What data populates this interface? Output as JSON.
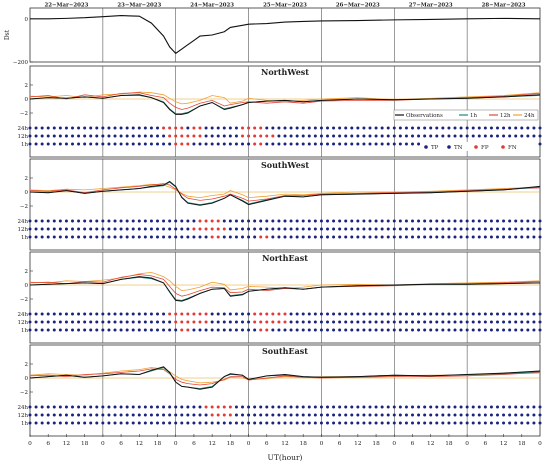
{
  "figure": {
    "dates": [
      "22−Mar−2023",
      "23−Mar−2023",
      "24−Mar−2023",
      "25−Mar−2023",
      "26−Mar−2023",
      "27−Mar−2023",
      "28−Mar−2023"
    ],
    "hour_ticks": [
      "0",
      "6",
      "12",
      "18"
    ],
    "last_tick": "0",
    "xlabel": "UT(hour)",
    "top_ylabel": "Dst",
    "top_yticks": [
      "0",
      "−200"
    ],
    "mid_yticks": [
      "−2",
      "0",
      "2"
    ],
    "class_rows": [
      "24h",
      "12h",
      "1h"
    ],
    "legend_series": [
      "Observations",
      "1h",
      "12h",
      "24h"
    ],
    "legend_classes": [
      "TP",
      "TN",
      "FP",
      "FN"
    ],
    "colors": {
      "obs": "#111111",
      "h1": "#1b8a7a",
      "h12": "#e0473a",
      "h24": "#f0a033",
      "tn": "#1a237e",
      "fp": "#e53935",
      "fn": "#e53935",
      "tp": "#1a237e"
    },
    "panels": [
      {
        "title": "NorthWest"
      },
      {
        "title": "SouthWest"
      },
      {
        "title": "NorthEast"
      },
      {
        "title": "SouthEast"
      }
    ]
  },
  "chart_data": {
    "type": "line",
    "x_unit": "UT hours since 22-Mar-2023 00:00",
    "xlim": [
      0,
      168
    ],
    "dst": {
      "ylim": [
        -200,
        50
      ],
      "x": [
        0,
        6,
        12,
        18,
        24,
        30,
        36,
        40,
        44,
        46,
        48,
        50,
        52,
        54,
        56,
        60,
        64,
        66,
        70,
        72,
        78,
        84,
        90,
        96,
        108,
        120,
        132,
        144,
        156,
        168
      ],
      "y": [
        0,
        0,
        2,
        5,
        10,
        15,
        12,
        -20,
        -80,
        -130,
        -160,
        -140,
        -120,
        -100,
        -80,
        -75,
        -60,
        -40,
        -30,
        -25,
        -22,
        -15,
        -12,
        -10,
        -8,
        -5,
        -3,
        0,
        2,
        0
      ]
    },
    "panels": [
      {
        "name": "NorthWest",
        "ylim": [
          -3,
          3
        ],
        "x": [
          0,
          6,
          12,
          18,
          24,
          30,
          36,
          40,
          44,
          46,
          48,
          50,
          52,
          56,
          60,
          64,
          66,
          70,
          72,
          78,
          84,
          90,
          96,
          108,
          120,
          132,
          144,
          156,
          168
        ],
        "series": [
          {
            "name": "Observations",
            "values": [
              0,
              0.2,
              0.1,
              0.3,
              0.1,
              0.5,
              0.6,
              0.2,
              -0.5,
              -1.5,
              -2.2,
              -2.2,
              -2.0,
              -1.0,
              -0.5,
              -1.5,
              -1.3,
              -0.8,
              -0.5,
              -0.3,
              -0.2,
              -0.4,
              -0.2,
              0,
              -0.1,
              0,
              0.1,
              0.3,
              0.6
            ]
          },
          {
            "name": "1h",
            "values": [
              0,
              0.2,
              0.1,
              0.3,
              0.1,
              0.5,
              0.5,
              0.2,
              -0.4,
              -1.4,
              -2.1,
              -2.1,
              -1.9,
              -1.0,
              -0.5,
              -1.4,
              -1.2,
              -0.8,
              -0.5,
              -0.3,
              -0.2,
              -0.4,
              -0.2,
              0,
              -0.1,
              0,
              0.1,
              0.3,
              0.5
            ]
          },
          {
            "name": "12h",
            "values": [
              0.3,
              0.5,
              0,
              0.6,
              0.3,
              0.8,
              0.9,
              0.5,
              0.2,
              -0.6,
              -1.2,
              -1.5,
              -1.3,
              -0.6,
              -0.2,
              -1.0,
              -0.8,
              -0.5,
              -0.4,
              -0.6,
              -0.4,
              -0.6,
              -0.3,
              -0.2,
              -0.2,
              0,
              0.2,
              0.4,
              0.8
            ]
          },
          {
            "name": "24h",
            "values": [
              0.4,
              0.3,
              0.5,
              0.2,
              0.6,
              0.7,
              1.0,
              0.9,
              0.6,
              0.1,
              -0.4,
              -0.7,
              -0.6,
              -0.2,
              0.5,
              0.2,
              -0.6,
              -0.3,
              0.1,
              -0.2,
              -0.4,
              -0.2,
              0,
              0.2,
              -0.1,
              0.1,
              0.3,
              0.5,
              0.9
            ]
          }
        ],
        "fp_fn_ranges": {
          "24h": [
            [
              44,
              51
            ],
            [
              53,
              56
            ],
            [
              70,
              76
            ]
          ],
          "12h": [
            [
              46,
              56
            ],
            [
              70,
              80
            ]
          ],
          "1h": [
            [
              48,
              52
            ],
            [
              74,
              76
            ]
          ]
        }
      },
      {
        "name": "SouthWest",
        "ylim": [
          -3,
          3
        ],
        "x": [
          0,
          6,
          12,
          18,
          24,
          30,
          36,
          40,
          44,
          46,
          48,
          50,
          52,
          56,
          60,
          64,
          66,
          70,
          72,
          78,
          84,
          90,
          96,
          108,
          120,
          132,
          144,
          156,
          168
        ],
        "series": [
          {
            "name": "Observations",
            "values": [
              0,
              -0.1,
              0.2,
              -0.2,
              0.1,
              0.3,
              0.5,
              0.8,
              1.0,
              1.5,
              0.8,
              -0.8,
              -1.6,
              -1.9,
              -1.6,
              -0.9,
              -0.4,
              -1.3,
              -1.8,
              -1.2,
              -0.6,
              -0.7,
              -0.4,
              -0.3,
              -0.2,
              -0.1,
              0.1,
              0.3,
              0.8
            ]
          },
          {
            "name": "1h",
            "values": [
              0,
              -0.1,
              0.2,
              -0.2,
              0.1,
              0.3,
              0.5,
              0.7,
              0.9,
              1.4,
              0.7,
              -0.7,
              -1.5,
              -1.8,
              -1.5,
              -0.9,
              -0.4,
              -1.2,
              -1.7,
              -1.1,
              -0.6,
              -0.7,
              -0.4,
              -0.3,
              -0.2,
              -0.1,
              0.1,
              0.3,
              0.7
            ]
          },
          {
            "name": "12h",
            "values": [
              0.2,
              0.1,
              0.3,
              -0.1,
              0.3,
              0.6,
              0.8,
              1.0,
              1.2,
              1.0,
              0.4,
              -0.3,
              -0.9,
              -1.2,
              -1.0,
              -0.6,
              -0.3,
              -0.9,
              -1.3,
              -1.0,
              -0.5,
              -0.5,
              -0.3,
              -0.2,
              -0.1,
              0,
              0.2,
              0.4,
              0.6
            ]
          },
          {
            "name": "24h",
            "values": [
              0.3,
              0.2,
              0.4,
              0.3,
              0.5,
              0.7,
              0.9,
              1.1,
              1.0,
              0.7,
              0.3,
              -0.2,
              -0.6,
              -0.8,
              -0.5,
              -0.3,
              0.2,
              -0.4,
              -0.8,
              -0.6,
              -0.3,
              -0.4,
              -0.2,
              0,
              0,
              0.1,
              0.3,
              0.5,
              0.7
            ]
          }
        ],
        "fp_fn_ranges": {
          "24h": [
            [
              56,
              62
            ]
          ],
          "12h": [
            [
              54,
              64
            ]
          ],
          "1h": [
            [
              60,
              62
            ],
            [
              76,
              78
            ]
          ]
        }
      },
      {
        "name": "NorthEast",
        "ylim": [
          -3,
          3
        ],
        "x": [
          0,
          6,
          12,
          18,
          24,
          30,
          36,
          40,
          44,
          46,
          48,
          50,
          52,
          56,
          60,
          64,
          66,
          70,
          72,
          78,
          84,
          90,
          96,
          108,
          120,
          132,
          144,
          156,
          168
        ],
        "series": [
          {
            "name": "Observations",
            "values": [
              0,
              0.1,
              0.2,
              0.3,
              0.2,
              0.8,
              1.2,
              1.0,
              0.3,
              -1.0,
              -2.2,
              -2.3,
              -2.0,
              -1.2,
              -0.6,
              -0.5,
              -1.6,
              -1.4,
              -0.9,
              -0.6,
              -0.4,
              -0.6,
              -0.3,
              -0.1,
              0,
              0.1,
              0.1,
              0.2,
              0.3
            ]
          },
          {
            "name": "1h",
            "values": [
              0,
              0.1,
              0.2,
              0.3,
              0.2,
              0.8,
              1.1,
              0.9,
              0.3,
              -0.9,
              -2.1,
              -2.2,
              -1.9,
              -1.2,
              -0.6,
              -0.5,
              -1.5,
              -1.3,
              -0.9,
              -0.6,
              -0.4,
              -0.6,
              -0.3,
              -0.1,
              0,
              0.1,
              0.1,
              0.2,
              0.3
            ]
          },
          {
            "name": "12h",
            "values": [
              0.3,
              0.4,
              0.2,
              0.5,
              0.4,
              1.1,
              1.5,
              1.3,
              0.8,
              -0.2,
              -1.2,
              -1.6,
              -1.4,
              -0.8,
              -0.3,
              -0.4,
              -1.1,
              -1.0,
              -0.6,
              -0.8,
              -0.5,
              -0.6,
              -0.3,
              -0.2,
              -0.1,
              0.1,
              0.2,
              0.3,
              0.5
            ]
          },
          {
            "name": "24h",
            "values": [
              0.4,
              0.3,
              0.6,
              0.5,
              0.7,
              1.0,
              1.6,
              1.8,
              1.2,
              0.6,
              -0.2,
              -0.8,
              -0.7,
              -0.3,
              0.4,
              0.1,
              -0.7,
              -0.5,
              -0.2,
              -0.3,
              -0.5,
              -0.3,
              0,
              0.1,
              0,
              0.2,
              0.3,
              0.4,
              0.6
            ]
          }
        ],
        "fp_fn_ranges": {
          "24h": [
            [
              46,
              58
            ],
            [
              74,
              84
            ]
          ],
          "12h": [
            [
              48,
              58
            ],
            [
              74,
              84
            ]
          ],
          "1h": [
            [
              50,
              52
            ],
            [
              76,
              78
            ]
          ]
        }
      },
      {
        "name": "SouthEast",
        "ylim": [
          -3,
          3
        ],
        "x": [
          0,
          6,
          12,
          18,
          24,
          30,
          36,
          40,
          44,
          46,
          48,
          50,
          52,
          56,
          60,
          64,
          66,
          70,
          72,
          78,
          84,
          90,
          96,
          108,
          120,
          132,
          144,
          156,
          168
        ],
        "series": [
          {
            "name": "Observations",
            "values": [
              0,
              0.2,
              0.4,
              0.1,
              0.3,
              0.6,
              0.5,
              1.1,
              1.6,
              0.8,
              -0.6,
              -1.2,
              -1.3,
              -1.6,
              -1.3,
              0.2,
              0.6,
              0.4,
              -0.2,
              0.3,
              0.5,
              0.2,
              0.1,
              0.2,
              0.4,
              0.3,
              0.5,
              0.7,
              1.0
            ]
          },
          {
            "name": "1h",
            "values": [
              0,
              0.2,
              0.4,
              0.1,
              0.3,
              0.6,
              0.5,
              1.0,
              1.5,
              0.7,
              -0.6,
              -1.2,
              -1.3,
              -1.5,
              -1.2,
              0.2,
              0.5,
              0.4,
              -0.2,
              0.3,
              0.4,
              0.2,
              0.1,
              0.2,
              0.4,
              0.3,
              0.5,
              0.6,
              0.9
            ]
          },
          {
            "name": "12h",
            "values": [
              0.3,
              0.4,
              0.2,
              0.5,
              0.6,
              0.8,
              1.0,
              1.3,
              1.2,
              0.6,
              -0.2,
              -0.6,
              -0.8,
              -1.0,
              -0.8,
              -0.2,
              0.2,
              0.2,
              -0.3,
              0,
              0.3,
              0.1,
              0,
              0.1,
              0.2,
              0.2,
              0.3,
              0.5,
              0.8
            ]
          },
          {
            "name": "24h",
            "values": [
              0.4,
              0.6,
              0.5,
              0.4,
              0.7,
              1.0,
              1.2,
              1.5,
              1.3,
              0.9,
              0.3,
              -0.2,
              -0.4,
              -0.7,
              -0.6,
              -0.3,
              0.1,
              0,
              -0.2,
              -0.1,
              0.2,
              0.1,
              0.2,
              0.2,
              0.3,
              0.4,
              0.4,
              0.6,
              0.7
            ]
          }
        ],
        "fp_fn_ranges": {
          "24h": [
            [
              58,
              66
            ]
          ],
          "12h": [
            [
              60,
              66
            ]
          ],
          "1h": []
        }
      }
    ]
  }
}
